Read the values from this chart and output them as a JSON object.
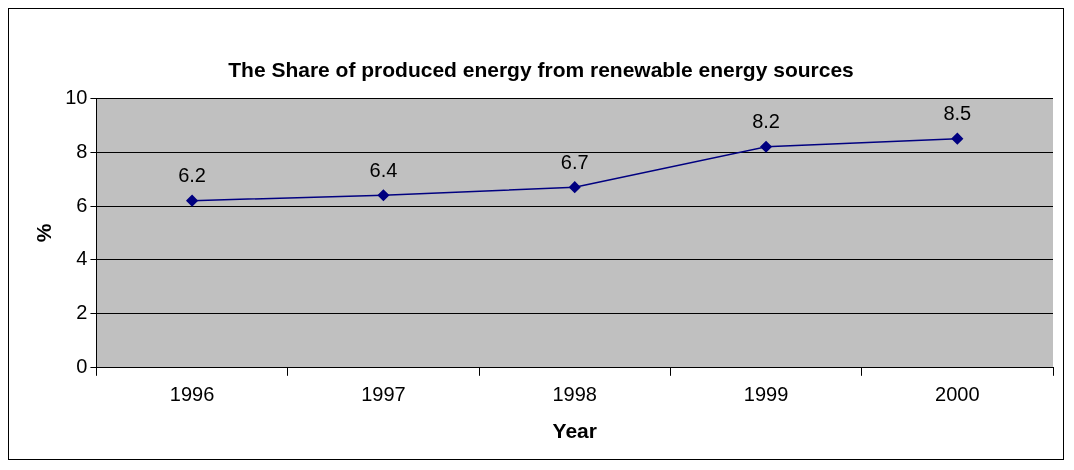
{
  "chart_data": {
    "type": "line",
    "title": "The Share of produced energy from renewable energy sources",
    "xlabel": "Year",
    "ylabel": "%",
    "categories": [
      "1996",
      "1997",
      "1998",
      "1999",
      "2000"
    ],
    "series": [
      {
        "color": "#000080",
        "values": [
          6.2,
          6.4,
          6.7,
          8.2,
          8.5
        ]
      }
    ],
    "ylim": [
      0,
      10
    ],
    "yticks": [
      0,
      2,
      4,
      6,
      8,
      10
    ],
    "grid": "y",
    "legend": false,
    "marker": "diamond",
    "line_style": "solid",
    "data_labels": true
  }
}
